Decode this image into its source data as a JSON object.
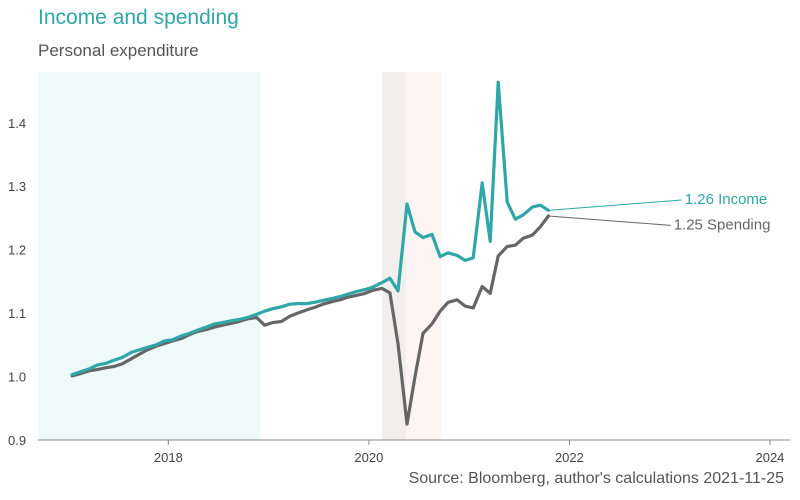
{
  "title": "Income and spending",
  "subtitle": "Personal expenditure",
  "source": "Source: Bloomberg, author's calculations 2021-11-25",
  "colors": {
    "income": "#2fa6a8",
    "spending": "#666666",
    "shade_forecast": "#eefaf9",
    "shade_recession_1": "#f2eeee",
    "shade_recession_2": "#fdf4f4",
    "axis": "#888888"
  },
  "chart_data": {
    "type": "line",
    "title": "Income and spending",
    "subtitle": "Personal expenditure",
    "xlim": [
      2016.7,
      2024.2
    ],
    "ylim": [
      0.9,
      1.48
    ],
    "x_ticks": [
      2018,
      2020,
      2022,
      2024
    ],
    "x_tick_labels": [
      "2018",
      "2020",
      "2022",
      "2024"
    ],
    "y_ticks": [
      0.9,
      1.0,
      1.1,
      1.2,
      1.3,
      1.4
    ],
    "y_tick_labels": [
      "0.9",
      "1.0",
      "1.1",
      "1.2",
      "1.3",
      "1.4"
    ],
    "grid": false,
    "shaded_regions": [
      {
        "x": [
          2016.7,
          2018.92
        ],
        "role": "shade_forecast"
      },
      {
        "x": [
          2020.13,
          2020.37
        ],
        "role": "shade_recession_1"
      },
      {
        "x": [
          2020.37,
          2020.72
        ],
        "role": "shade_recession_2"
      }
    ],
    "series": [
      {
        "name": "Income",
        "color_key": "income",
        "end_label": "1.26 Income",
        "label_at": [
          2023.15,
          1.272
        ],
        "x": [
          2017.04,
          2017.13,
          2017.21,
          2017.29,
          2017.38,
          2017.46,
          2017.54,
          2017.63,
          2017.71,
          2017.79,
          2017.88,
          2017.96,
          2018.04,
          2018.13,
          2018.21,
          2018.29,
          2018.38,
          2018.46,
          2018.54,
          2018.63,
          2018.71,
          2018.79,
          2018.88,
          2018.96,
          2019.04,
          2019.13,
          2019.21,
          2019.29,
          2019.38,
          2019.46,
          2019.54,
          2019.63,
          2019.71,
          2019.79,
          2019.88,
          2019.96,
          2020.04,
          2020.13,
          2020.21,
          2020.29,
          2020.38,
          2020.46,
          2020.54,
          2020.63,
          2020.71,
          2020.79,
          2020.88,
          2020.96,
          2021.04,
          2021.13,
          2021.21,
          2021.29,
          2021.38,
          2021.46,
          2021.54,
          2021.63,
          2021.71,
          2021.79
        ],
        "values": [
          1.003,
          1.008,
          1.012,
          1.018,
          1.021,
          1.026,
          1.03,
          1.038,
          1.042,
          1.046,
          1.05,
          1.056,
          1.058,
          1.064,
          1.068,
          1.073,
          1.078,
          1.083,
          1.085,
          1.088,
          1.09,
          1.093,
          1.098,
          1.103,
          1.107,
          1.11,
          1.114,
          1.115,
          1.115,
          1.117,
          1.12,
          1.123,
          1.126,
          1.13,
          1.134,
          1.137,
          1.141,
          1.148,
          1.155,
          1.135,
          1.272,
          1.228,
          1.219,
          1.224,
          1.189,
          1.195,
          1.191,
          1.183,
          1.187,
          1.305,
          1.213,
          1.464,
          1.275,
          1.248,
          1.255,
          1.267,
          1.27,
          1.262
        ]
      },
      {
        "name": "Spending",
        "color_key": "spending",
        "end_label": "1.25 Spending",
        "label_at": [
          2023.04,
          1.232
        ],
        "x": [
          2017.04,
          2017.13,
          2017.21,
          2017.29,
          2017.38,
          2017.46,
          2017.54,
          2017.63,
          2017.71,
          2017.79,
          2017.88,
          2017.96,
          2018.04,
          2018.13,
          2018.21,
          2018.29,
          2018.38,
          2018.46,
          2018.54,
          2018.63,
          2018.71,
          2018.79,
          2018.88,
          2018.96,
          2019.04,
          2019.13,
          2019.21,
          2019.29,
          2019.38,
          2019.46,
          2019.54,
          2019.63,
          2019.71,
          2019.79,
          2019.88,
          2019.96,
          2020.04,
          2020.13,
          2020.21,
          2020.29,
          2020.38,
          2020.46,
          2020.54,
          2020.63,
          2020.71,
          2020.79,
          2020.88,
          2020.96,
          2021.04,
          2021.13,
          2021.21,
          2021.29,
          2021.38,
          2021.46,
          2021.54,
          2021.63,
          2021.71,
          2021.79
        ],
        "values": [
          1.001,
          1.005,
          1.009,
          1.011,
          1.014,
          1.016,
          1.02,
          1.028,
          1.035,
          1.042,
          1.048,
          1.052,
          1.056,
          1.06,
          1.066,
          1.071,
          1.074,
          1.078,
          1.081,
          1.084,
          1.087,
          1.091,
          1.093,
          1.081,
          1.085,
          1.087,
          1.095,
          1.1,
          1.105,
          1.109,
          1.114,
          1.118,
          1.121,
          1.125,
          1.128,
          1.131,
          1.136,
          1.139,
          1.132,
          1.052,
          0.925,
          1.0,
          1.068,
          1.083,
          1.103,
          1.117,
          1.121,
          1.111,
          1.108,
          1.142,
          1.131,
          1.19,
          1.205,
          1.207,
          1.218,
          1.223,
          1.236,
          1.253
        ]
      }
    ]
  }
}
